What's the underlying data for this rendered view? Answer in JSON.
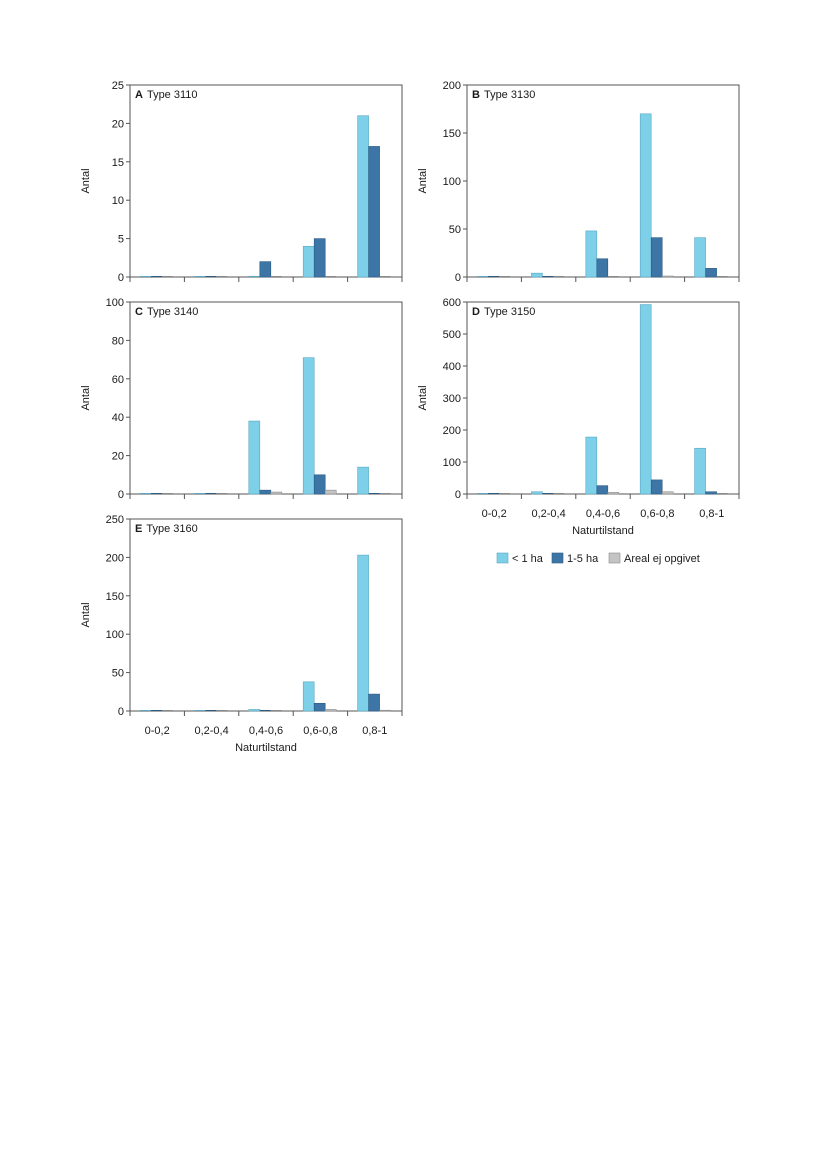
{
  "categories": [
    "0-0,2",
    "0,2-0,4",
    "0,4-0,6",
    "0,6-0,8",
    "0,8-1"
  ],
  "xlabel": "Naturtilstand",
  "ylabel": "Antal",
  "legend": [
    "< 1 ha",
    "1-5 ha",
    "Areal ej opgivet"
  ],
  "colors": {
    "lt1ha": "#7ecfe8",
    "ha1_5": "#3d76a6",
    "unknown": "#c4c4c4"
  },
  "chart_data": [
    {
      "type": "bar",
      "panel": "A",
      "title": "Type 3110",
      "categories": [
        "0-0,2",
        "0,2-0,4",
        "0,4-0,6",
        "0,6-0,8",
        "0,8-1"
      ],
      "series": [
        {
          "name": "< 1 ha",
          "values": [
            0,
            0,
            0,
            4,
            21
          ]
        },
        {
          "name": "1-5 ha",
          "values": [
            0,
            0,
            2,
            5,
            17
          ]
        },
        {
          "name": "Areal ej opgivet",
          "values": [
            0,
            0,
            0,
            0,
            0
          ]
        }
      ],
      "yticks": [
        0,
        5,
        10,
        15,
        20,
        25
      ],
      "ylim": [
        0,
        25
      ],
      "xlabel": "",
      "ylabel": "Antal"
    },
    {
      "type": "bar",
      "panel": "B",
      "title": "Type 3130",
      "categories": [
        "0-0,2",
        "0,2-0,4",
        "0,4-0,6",
        "0,6-0,8",
        "0,8-1"
      ],
      "series": [
        {
          "name": "< 1 ha",
          "values": [
            0,
            4,
            48,
            170,
            41
          ]
        },
        {
          "name": "1-5 ha",
          "values": [
            0,
            0,
            19,
            41,
            9
          ]
        },
        {
          "name": "Areal ej opgivet",
          "values": [
            0,
            0,
            0,
            1,
            0
          ]
        }
      ],
      "yticks": [
        0,
        50,
        100,
        150,
        200
      ],
      "ylim": [
        0,
        200
      ],
      "xlabel": "",
      "ylabel": "Antal"
    },
    {
      "type": "bar",
      "panel": "C",
      "title": "Type 3140",
      "categories": [
        "0-0,2",
        "0,2-0,4",
        "0,4-0,6",
        "0,6-0,8",
        "0,8-1"
      ],
      "series": [
        {
          "name": "< 1 ha",
          "values": [
            0,
            0,
            38,
            71,
            14
          ]
        },
        {
          "name": "1-5 ha",
          "values": [
            0,
            0,
            2,
            10,
            0
          ]
        },
        {
          "name": "Areal ej opgivet",
          "values": [
            0,
            0,
            1,
            2,
            0
          ]
        }
      ],
      "yticks": [
        0,
        20,
        40,
        60,
        80,
        100
      ],
      "ylim": [
        0,
        100
      ],
      "xlabel": "",
      "ylabel": "Antal"
    },
    {
      "type": "bar",
      "panel": "D",
      "title": "Type 3150",
      "categories": [
        "0-0,2",
        "0,2-0,4",
        "0,4-0,6",
        "0,6-0,8",
        "0,8-1"
      ],
      "series": [
        {
          "name": "< 1 ha",
          "values": [
            0,
            7,
            178,
            592,
            143
          ]
        },
        {
          "name": "1-5 ha",
          "values": [
            0,
            0,
            26,
            44,
            7
          ]
        },
        {
          "name": "Areal ej opgivet",
          "values": [
            0,
            0,
            5,
            7,
            0
          ]
        }
      ],
      "yticks": [
        0,
        100,
        200,
        300,
        400,
        500,
        600
      ],
      "ylim": [
        0,
        600
      ],
      "xlabel": "Naturtilstand",
      "ylabel": "Antal"
    },
    {
      "type": "bar",
      "panel": "E",
      "title": "Type 3160",
      "categories": [
        "0-0,2",
        "0,2-0,4",
        "0,4-0,6",
        "0,6-0,8",
        "0,8-1"
      ],
      "series": [
        {
          "name": "< 1 ha",
          "values": [
            0,
            0,
            2,
            38,
            203
          ]
        },
        {
          "name": "1-5 ha",
          "values": [
            0,
            0,
            0,
            10,
            22
          ]
        },
        {
          "name": "Areal ej opgivet",
          "values": [
            0,
            0,
            0,
            2,
            1
          ]
        }
      ],
      "yticks": [
        0,
        50,
        100,
        150,
        200,
        250
      ],
      "ylim": [
        0,
        250
      ],
      "xlabel": "Naturtilstand",
      "ylabel": "Antal"
    }
  ]
}
